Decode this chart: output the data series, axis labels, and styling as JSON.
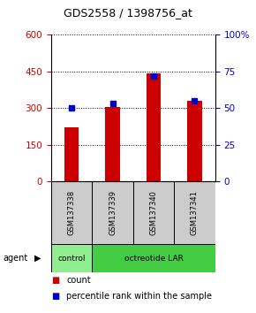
{
  "title": "GDS2558 / 1398756_at",
  "samples": [
    "GSM137338",
    "GSM137339",
    "GSM137340",
    "GSM137341"
  ],
  "counts": [
    220,
    305,
    440,
    330
  ],
  "percentiles": [
    50,
    53,
    72,
    55
  ],
  "left_ylim": [
    0,
    600
  ],
  "left_yticks": [
    0,
    150,
    300,
    450,
    600
  ],
  "right_ylim": [
    0,
    100
  ],
  "right_yticks": [
    0,
    25,
    50,
    75,
    100
  ],
  "bar_color": "#cc0000",
  "percentile_color": "#0000cc",
  "agent_label": "agent",
  "agent_groups": [
    {
      "label": "control",
      "span": [
        0,
        1
      ],
      "color": "#90ee90"
    },
    {
      "label": "octreotide LAR",
      "span": [
        1,
        4
      ],
      "color": "#44cc44"
    }
  ],
  "sample_box_color": "#cccccc",
  "legend_count_color": "#cc0000",
  "legend_percentile_color": "#0000cc",
  "legend_count_label": "count",
  "legend_percentile_label": "percentile rank within the sample",
  "title_fontsize": 9,
  "axis_label_color_left": "#cc0000",
  "axis_label_color_right": "#0000cc",
  "bar_width": 0.35,
  "percentile_marker_size": 5
}
